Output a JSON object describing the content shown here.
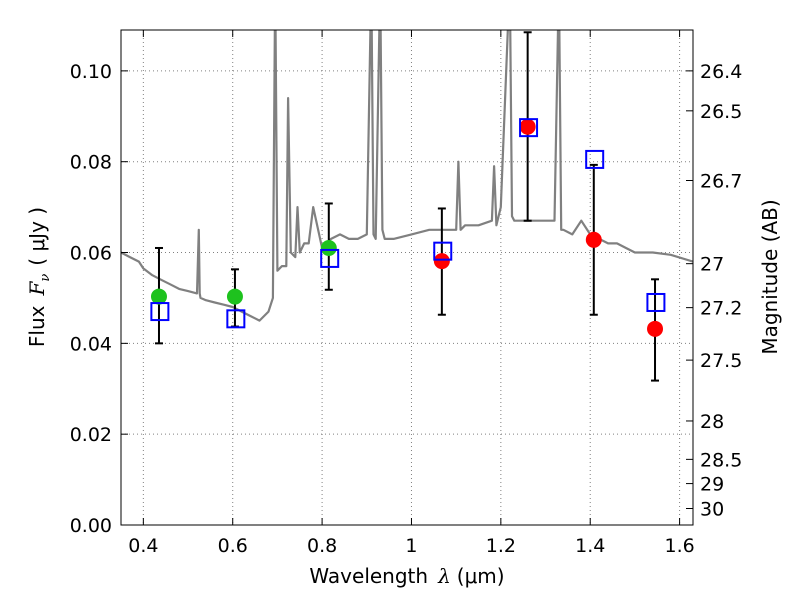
{
  "chart_data": {
    "type": "scatter",
    "xlabel": {
      "text": "Wavelength",
      "symbol": "λ",
      "unit": "(μm)"
    },
    "ylabel": {
      "text": "Flux",
      "symbol": "F",
      "subscript": "ν",
      "unit": "( μJy )"
    },
    "y2label": "Magnitude (AB)",
    "xlim": [
      0.35,
      1.63
    ],
    "ylim": [
      0.0,
      0.109
    ],
    "grid": true,
    "x_ticks": [
      0.4,
      0.6,
      0.8,
      1.0,
      1.2,
      1.4,
      1.6
    ],
    "x_tick_labels": [
      "0.4",
      "0.6",
      "0.8",
      "1",
      "1.2",
      "1.4",
      "1.6"
    ],
    "y_ticks": [
      0.0,
      0.02,
      0.04,
      0.06,
      0.08,
      0.1
    ],
    "y_tick_labels": [
      "0.00",
      "0.02",
      "0.04",
      "0.06",
      "0.08",
      "0.10"
    ],
    "y2_ticks": [
      "26.4",
      "26.5",
      "26.7",
      "27",
      "27.2",
      "27.5",
      "28",
      "28.5",
      "29",
      "30"
    ],
    "colors": {
      "template": "#808080",
      "green": "#1ec21e",
      "red": "#ff0000",
      "square": "#0000ff",
      "errorbar": "#000000",
      "grid": "#808080"
    },
    "template_spectrum": {
      "name": "model spectrum",
      "x": [
        0.35,
        0.37,
        0.39,
        0.4,
        0.42,
        0.44,
        0.46,
        0.48,
        0.5,
        0.52,
        0.524,
        0.526,
        0.528,
        0.54,
        0.56,
        0.58,
        0.6,
        0.62,
        0.64,
        0.66,
        0.68,
        0.69,
        0.695,
        0.7,
        0.71,
        0.72,
        0.724,
        0.73,
        0.74,
        0.745,
        0.75,
        0.76,
        0.77,
        0.78,
        0.8,
        0.82,
        0.84,
        0.86,
        0.88,
        0.9,
        0.91,
        0.915,
        0.92,
        0.93,
        0.935,
        0.94,
        0.95,
        0.96,
        1.0,
        1.04,
        1.07,
        1.1,
        1.105,
        1.11,
        1.12,
        1.15,
        1.18,
        1.185,
        1.19,
        1.2,
        1.22,
        1.225,
        1.23,
        1.26,
        1.29,
        1.32,
        1.33,
        1.335,
        1.34,
        1.36,
        1.38,
        1.4,
        1.42,
        1.44,
        1.46,
        1.48,
        1.5,
        1.54,
        1.58,
        1.63
      ],
      "y": [
        0.06,
        0.059,
        0.058,
        0.0565,
        0.055,
        0.054,
        0.053,
        0.052,
        0.0515,
        0.051,
        0.065,
        0.051,
        0.05,
        0.0495,
        0.049,
        0.0485,
        0.048,
        0.047,
        0.046,
        0.045,
        0.047,
        0.05,
        0.12,
        0.056,
        0.057,
        0.057,
        0.094,
        0.06,
        0.059,
        0.07,
        0.06,
        0.062,
        0.062,
        0.07,
        0.061,
        0.063,
        0.064,
        0.063,
        0.063,
        0.064,
        0.12,
        0.064,
        0.063,
        0.12,
        0.065,
        0.063,
        0.063,
        0.063,
        0.064,
        0.065,
        0.065,
        0.065,
        0.08,
        0.065,
        0.066,
        0.066,
        0.067,
        0.079,
        0.066,
        0.07,
        0.12,
        0.068,
        0.067,
        0.067,
        0.067,
        0.067,
        0.12,
        0.065,
        0.065,
        0.064,
        0.067,
        0.064,
        0.063,
        0.062,
        0.062,
        0.061,
        0.06,
        0.06,
        0.0595,
        0.058
      ]
    },
    "series": [
      {
        "name": "green points",
        "marker": "circle",
        "x": [
          0.435,
          0.605,
          0.815
        ],
        "y": [
          0.0503,
          0.0503,
          0.061
        ]
      },
      {
        "name": "red points",
        "marker": "circle",
        "x": [
          1.068,
          1.26,
          1.408,
          1.545
        ],
        "y": [
          0.0581,
          0.0877,
          0.0628,
          0.0432
        ]
      },
      {
        "name": "open squares",
        "marker": "square",
        "x": [
          0.437,
          0.607,
          0.817,
          1.07,
          1.262,
          1.41,
          1.547
        ],
        "y": [
          0.047,
          0.0454,
          0.0587,
          0.0603,
          0.0875,
          0.0805,
          0.049
        ]
      }
    ],
    "errorbars": [
      {
        "x": 0.435,
        "low": 0.04,
        "high": 0.061
      },
      {
        "x": 0.605,
        "low": 0.0437,
        "high": 0.0563
      },
      {
        "x": 0.815,
        "low": 0.0518,
        "high": 0.0708
      },
      {
        "x": 1.068,
        "low": 0.0463,
        "high": 0.0697
      },
      {
        "x": 1.26,
        "low": 0.067,
        "high": 0.1085
      },
      {
        "x": 1.408,
        "low": 0.0463,
        "high": 0.0793
      },
      {
        "x": 1.545,
        "low": 0.0318,
        "high": 0.0541
      }
    ]
  }
}
